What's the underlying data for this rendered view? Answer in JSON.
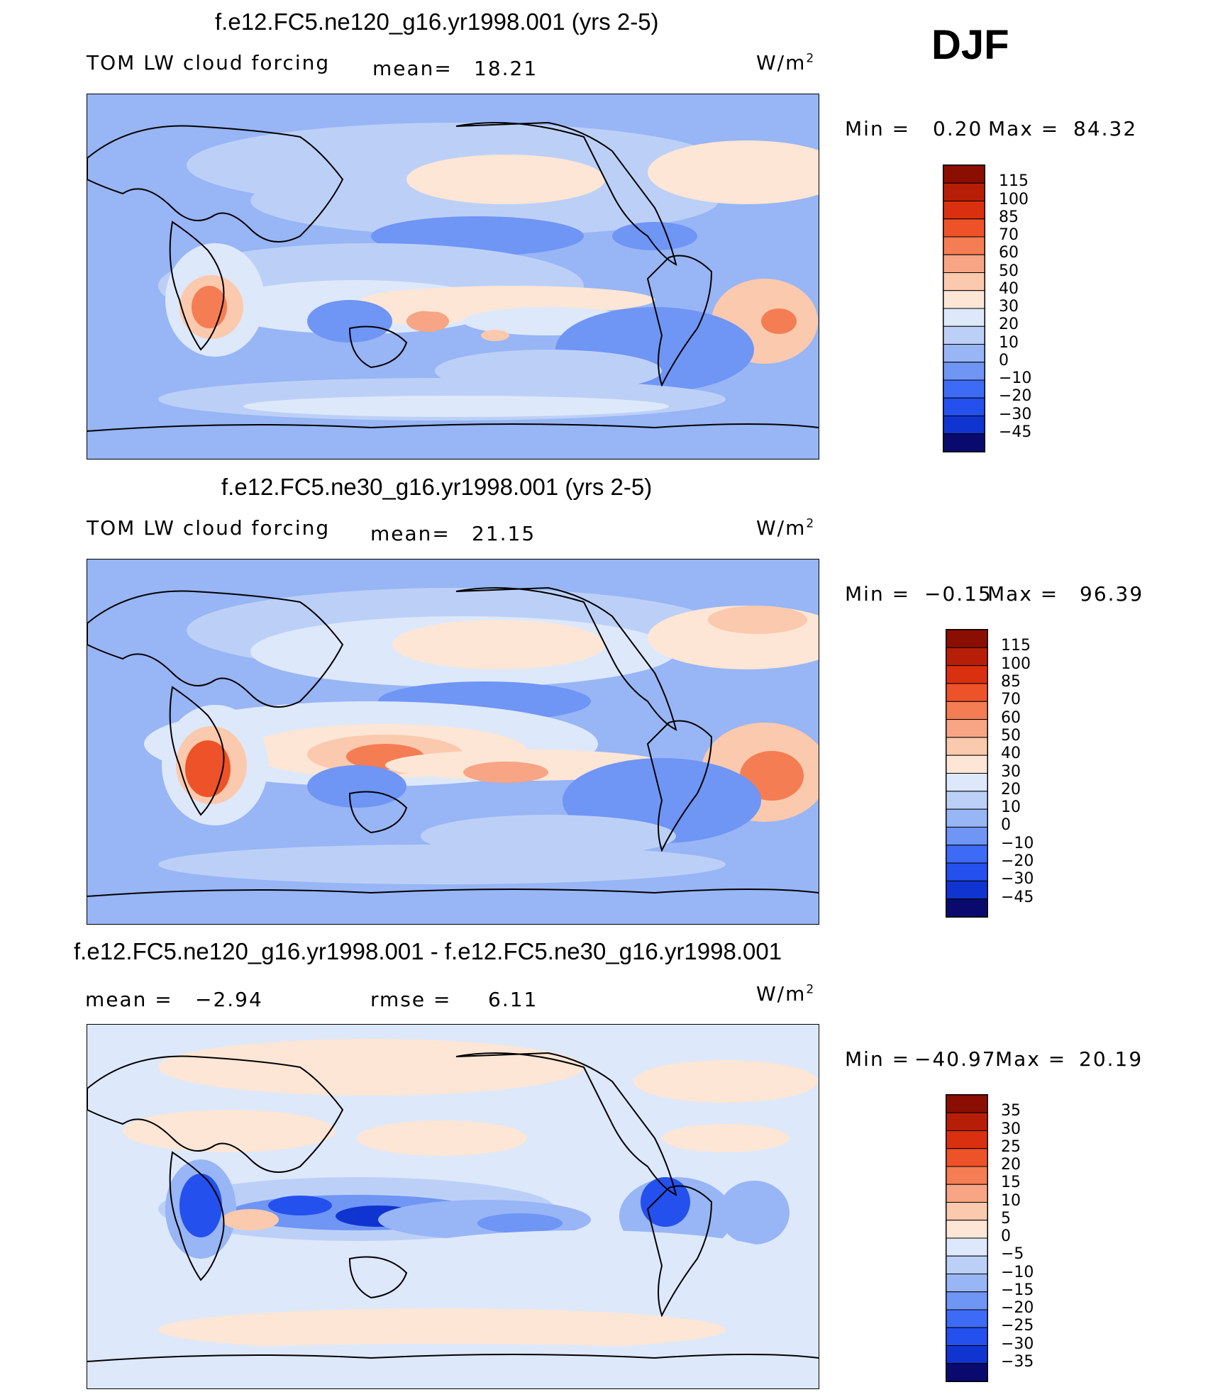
{
  "season": "DJF",
  "units": "W/m",
  "units_sup": "2",
  "panels": [
    {
      "title": "f.e12.FC5.ne120_g16.yr1998.001 (yrs 2-5)",
      "left_label": "TOM LW cloud forcing",
      "stat_label": "mean=",
      "stat_value": "18.21",
      "min_label": "Min =",
      "min_value": "0.20",
      "max_label": "Max =",
      "max_value": "84.32",
      "levels": [
        "115",
        "100",
        "85",
        "70",
        "60",
        "50",
        "40",
        "30",
        "20",
        "10",
        "0",
        "−10",
        "−20",
        "−30",
        "−45"
      ]
    },
    {
      "title": "f.e12.FC5.ne30_g16.yr1998.001 (yrs 2-5)",
      "left_label": "TOM LW cloud forcing",
      "stat_label": "mean=",
      "stat_value": "21.15",
      "min_label": "Min =",
      "min_value": "−0.15",
      "max_label": "Max =",
      "max_value": "96.39",
      "levels": [
        "115",
        "100",
        "85",
        "70",
        "60",
        "50",
        "40",
        "30",
        "20",
        "10",
        "0",
        "−10",
        "−20",
        "−30",
        "−45"
      ]
    },
    {
      "title": "f.e12.FC5.ne120_g16.yr1998.001 - f.e12.FC5.ne30_g16.yr1998.001",
      "left_label": "mean =",
      "left_value": "−2.94",
      "stat_label": "rmse =",
      "stat_value": "6.11",
      "min_label": "Min =",
      "min_value": "−40.97",
      "max_label": "Max =",
      "max_value": "20.19",
      "levels": [
        "35",
        "30",
        "25",
        "20",
        "15",
        "10",
        "5",
        "0",
        "−5",
        "−10",
        "−15",
        "−20",
        "−25",
        "−30",
        "−35"
      ]
    }
  ],
  "chart_data": [
    {
      "type": "heatmap",
      "title": "f.e12.FC5.ne120_g16.yr1998.001 (yrs 2-5)",
      "variable": "TOM LW cloud forcing",
      "season": "DJF",
      "units": "W/m2",
      "mean": 18.21,
      "min": 0.2,
      "max": 84.32,
      "contour_levels": [
        -45,
        -30,
        -20,
        -10,
        0,
        10,
        20,
        30,
        40,
        50,
        60,
        70,
        85,
        100,
        115
      ],
      "colors": [
        "#0a0a6e",
        "#0d1fa8",
        "#1034cf",
        "#2450ee",
        "#3d6bf5",
        "#6f95f5",
        "#98b5f5",
        "#bcd0f7",
        "#dde8fa",
        "#fde6d5",
        "#fbc9ad",
        "#f7a585",
        "#f47d54",
        "#ee5228",
        "#d9300f",
        "#b71e07",
        "#8b0e03"
      ],
      "colormap_bins_high_to_low": [
        "#8b0e03",
        "#b71e07",
        "#d9300f",
        "#ee5228",
        "#f47d54",
        "#f7a585",
        "#fbc9ad",
        "#fde6d5",
        "#dde8fa",
        "#bcd0f7",
        "#98b5f5",
        "#6f95f5",
        "#3d6bf5",
        "#2450ee",
        "#1034cf",
        "#0a0a6e"
      ]
    },
    {
      "type": "heatmap",
      "title": "f.e12.FC5.ne30_g16.yr1998.001 (yrs 2-5)",
      "variable": "TOM LW cloud forcing",
      "season": "DJF",
      "units": "W/m2",
      "mean": 21.15,
      "min": -0.15,
      "max": 96.39,
      "contour_levels": [
        -45,
        -30,
        -20,
        -10,
        0,
        10,
        20,
        30,
        40,
        50,
        60,
        70,
        85,
        100,
        115
      ],
      "colormap_bins_high_to_low": [
        "#8b0e03",
        "#b71e07",
        "#d9300f",
        "#ee5228",
        "#f47d54",
        "#f7a585",
        "#fbc9ad",
        "#fde6d5",
        "#dde8fa",
        "#bcd0f7",
        "#98b5f5",
        "#6f95f5",
        "#3d6bf5",
        "#2450ee",
        "#1034cf",
        "#0a0a6e"
      ]
    },
    {
      "type": "heatmap",
      "title": "f.e12.FC5.ne120_g16.yr1998.001 - f.e12.FC5.ne30_g16.yr1998.001",
      "variable": "TOM LW cloud forcing difference",
      "season": "DJF",
      "units": "W/m2",
      "mean": -2.94,
      "rmse": 6.11,
      "min": -40.97,
      "max": 20.19,
      "contour_levels": [
        -35,
        -30,
        -25,
        -20,
        -15,
        -10,
        -5,
        0,
        5,
        10,
        15,
        20,
        25,
        30,
        35
      ],
      "colormap_bins_high_to_low": [
        "#8b0e03",
        "#b71e07",
        "#d9300f",
        "#ee5228",
        "#f47d54",
        "#f7a585",
        "#fbc9ad",
        "#fde6d5",
        "#dde8fa",
        "#bcd0f7",
        "#98b5f5",
        "#6f95f5",
        "#3d6bf5",
        "#2450ee",
        "#1034cf",
        "#0a0a6e"
      ]
    }
  ]
}
